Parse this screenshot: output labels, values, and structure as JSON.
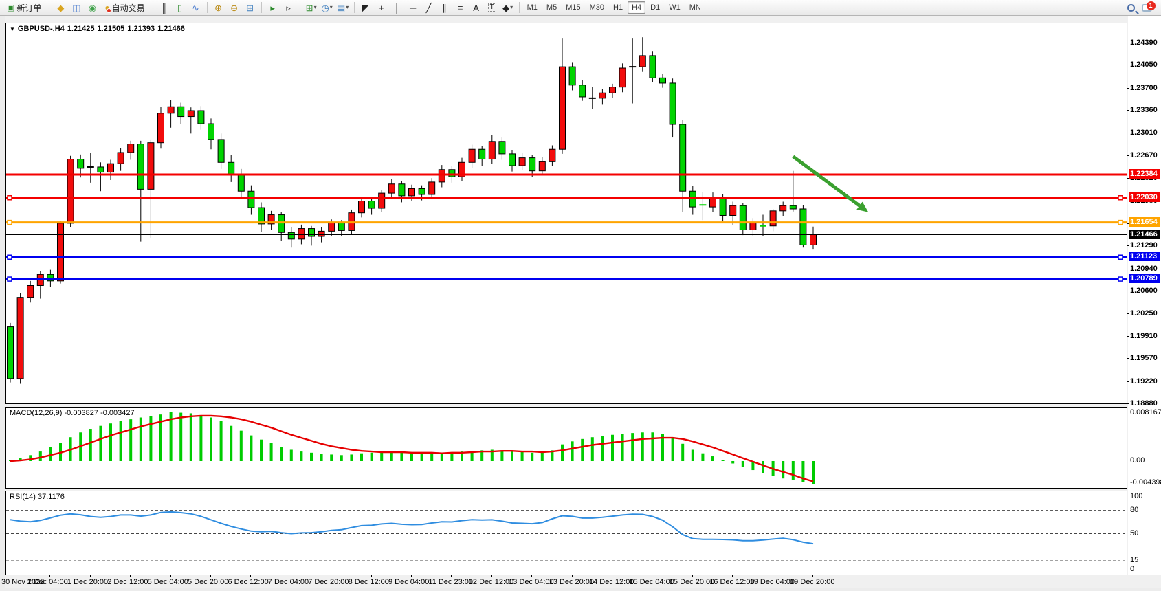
{
  "toolbar": {
    "items": [
      {
        "t": "btn",
        "name": "new-order-button",
        "glyph": "▣",
        "color": "#2e8b2e",
        "label": "新订单"
      },
      {
        "t": "sep"
      },
      {
        "t": "ico",
        "name": "market-watch-icon",
        "glyph": "◆",
        "color": "#d9a520"
      },
      {
        "t": "ico",
        "name": "navigator-icon",
        "glyph": "◫",
        "color": "#4f7fd0"
      },
      {
        "t": "ico",
        "name": "terminal-icon",
        "glyph": "◉",
        "color": "#3fa24a"
      },
      {
        "t": "btn",
        "name": "auto-trading-button",
        "glyph": "●",
        "color": "#d9a520",
        "label": "自动交易",
        "dot": true
      },
      {
        "t": "sep"
      },
      {
        "t": "ico",
        "name": "bar-chart-icon",
        "glyph": "║",
        "color": "#444"
      },
      {
        "t": "ico",
        "name": "candlestick-chart-icon",
        "glyph": "▯",
        "color": "#2e8b2e"
      },
      {
        "t": "ico",
        "name": "line-chart-icon",
        "glyph": "∿",
        "color": "#4f7fd0"
      },
      {
        "t": "sep"
      },
      {
        "t": "ico",
        "name": "zoom-in-icon",
        "glyph": "⊕",
        "color": "#b8860b"
      },
      {
        "t": "ico",
        "name": "zoom-out-icon",
        "glyph": "⊖",
        "color": "#b8860b"
      },
      {
        "t": "ico",
        "name": "tile-windows-icon",
        "glyph": "⊞",
        "color": "#3f7fbf"
      },
      {
        "t": "sep"
      },
      {
        "t": "ico",
        "name": "auto-scroll-icon",
        "glyph": "▸",
        "color": "#2e8b2e"
      },
      {
        "t": "ico",
        "name": "chart-shift-icon",
        "glyph": "▹",
        "color": "#444"
      },
      {
        "t": "sep"
      },
      {
        "t": "drop",
        "name": "new-chart-button",
        "glyph": "⊞",
        "color": "#2e8b2e"
      },
      {
        "t": "drop",
        "name": "periods-button",
        "glyph": "◷",
        "color": "#3f7fbf"
      },
      {
        "t": "drop",
        "name": "templates-button",
        "glyph": "▤",
        "color": "#3f7fbf"
      },
      {
        "t": "sep"
      },
      {
        "t": "ico",
        "name": "cursor-icon",
        "glyph": "◤",
        "color": "#222"
      },
      {
        "t": "ico",
        "name": "crosshair-icon",
        "glyph": "+",
        "color": "#222"
      },
      {
        "t": "ico",
        "name": "vertical-line-icon",
        "glyph": "│",
        "color": "#222"
      },
      {
        "t": "ico",
        "name": "horizontal-line-icon",
        "glyph": "─",
        "color": "#222"
      },
      {
        "t": "ico",
        "name": "trendline-icon",
        "glyph": "╱",
        "color": "#222"
      },
      {
        "t": "ico",
        "name": "equidistant-channel-icon",
        "glyph": "∥",
        "color": "#222"
      },
      {
        "t": "ico",
        "name": "fibonacci-icon",
        "glyph": "≡",
        "color": "#222"
      },
      {
        "t": "ico",
        "name": "text-icon",
        "glyph": "A",
        "color": "#222"
      },
      {
        "t": "ico",
        "name": "text-label-icon",
        "glyph": "T",
        "color": "#222",
        "boxed": true
      },
      {
        "t": "drop",
        "name": "arrows-tool-button",
        "glyph": "◆",
        "color": "#222"
      },
      {
        "t": "sep"
      }
    ],
    "timeframes": [
      "M1",
      "M5",
      "M15",
      "M30",
      "H1",
      "H4",
      "D1",
      "W1",
      "MN"
    ],
    "active_timeframe": "H4",
    "notification_count": "1"
  },
  "chart": {
    "title": {
      "symbol": "GBPUSD-,H4",
      "open": "1.21425",
      "high": "1.21505",
      "low": "1.21393",
      "close": "1.21466"
    },
    "price_axis_ticks": [
      "1.24390",
      "1.24050",
      "1.23700",
      "1.23360",
      "1.23010",
      "1.22670",
      "1.22320",
      "1.21980",
      "1.21630",
      "1.21290",
      "1.20940",
      "1.20600",
      "1.20250",
      "1.19910",
      "1.19570",
      "1.19220",
      "1.18880"
    ],
    "hlines": [
      {
        "price": 1.22384,
        "label": "1.22384",
        "color": "#f40000",
        "width": 3,
        "handle": false
      },
      {
        "price": 1.2203,
        "label": "1.22030",
        "color": "#f40000",
        "width": 3,
        "handle": true
      },
      {
        "price": 1.21654,
        "label": "1.21654",
        "color": "#ffa400",
        "width": 3,
        "handle": true
      },
      {
        "price": 1.21466,
        "label": "1.21466",
        "color": "#000000",
        "width": 1,
        "handle": false,
        "current": true
      },
      {
        "price": 1.21123,
        "label": "1.21123",
        "color": "#0000f0",
        "width": 3,
        "handle": true
      },
      {
        "price": 1.20789,
        "label": "1.20789",
        "color": "#0000f0",
        "width": 3,
        "handle": true
      }
    ],
    "arrow": {
      "color": "#3aa02f",
      "from_bar": 78,
      "from_price": 1.2266,
      "to_bar": 85.5,
      "to_price": 1.2181
    },
    "colors": {
      "bull": "#f20c0c",
      "bear": "#00d400",
      "wick": "#000000"
    },
    "time_labels": [
      "30 Nov 2022",
      "1 Dec 04:00",
      "1 Dec 20:00",
      "2 Dec 12:00",
      "5 Dec 04:00",
      "5 Dec 20:00",
      "6 Dec 12:00",
      "7 Dec 04:00",
      "7 Dec 20:00",
      "8 Dec 12:00",
      "9 Dec 04:00",
      "11 Dec 23:00",
      "12 Dec 12:00",
      "13 Dec 04:00",
      "13 Dec 20:00",
      "14 Dec 12:00",
      "15 Dec 04:00",
      "15 Dec 20:00",
      "16 Dec 12:00",
      "19 Dec 04:00",
      "19 Dec 20:00"
    ],
    "candles": [
      [
        1.2006,
        1.2012,
        1.1921,
        1.1927
      ],
      [
        1.1927,
        1.2058,
        1.1919,
        1.2051
      ],
      [
        1.2051,
        1.2076,
        1.2043,
        1.2069
      ],
      [
        1.2069,
        1.2091,
        1.2049,
        1.2086
      ],
      [
        1.2086,
        1.2093,
        1.2067,
        1.2076
      ],
      [
        1.2076,
        1.2168,
        1.2072,
        1.2164
      ],
      [
        1.2164,
        1.2267,
        1.2158,
        1.2262
      ],
      [
        1.2262,
        1.2269,
        1.2234,
        1.2248
      ],
      [
        1.2249,
        1.2272,
        1.2226,
        1.225,
        "d"
      ],
      [
        1.225,
        1.2257,
        1.2213,
        1.2242
      ],
      [
        1.2242,
        1.2261,
        1.223,
        1.2255
      ],
      [
        1.2255,
        1.2279,
        1.2244,
        1.2272
      ],
      [
        1.2272,
        1.229,
        1.2261,
        1.2285
      ],
      [
        1.2285,
        1.229,
        1.2136,
        1.2216
      ],
      [
        1.2216,
        1.2292,
        1.2142,
        1.2287
      ],
      [
        1.2287,
        1.2342,
        1.2278,
        1.2332
      ],
      [
        1.2332,
        1.2352,
        1.231,
        1.2342
      ],
      [
        1.2342,
        1.2348,
        1.2316,
        1.2327
      ],
      [
        1.2327,
        1.2341,
        1.2301,
        1.2336
      ],
      [
        1.2336,
        1.2343,
        1.2307,
        1.2316
      ],
      [
        1.2316,
        1.2324,
        1.2277,
        1.2292
      ],
      [
        1.2292,
        1.2301,
        1.2247,
        1.2257
      ],
      [
        1.2257,
        1.2268,
        1.2227,
        1.2238
      ],
      [
        1.2238,
        1.2247,
        1.2202,
        1.2213
      ],
      [
        1.2213,
        1.2222,
        1.2177,
        1.2188
      ],
      [
        1.2188,
        1.2196,
        1.2151,
        1.2163
      ],
      [
        1.2163,
        1.2183,
        1.2154,
        1.2177
      ],
      [
        1.2177,
        1.2181,
        1.2137,
        1.215
      ],
      [
        1.215,
        1.2158,
        1.2127,
        1.214
      ],
      [
        1.214,
        1.2162,
        1.2132,
        1.2156
      ],
      [
        1.2156,
        1.216,
        1.213,
        1.2144
      ],
      [
        1.2144,
        1.2158,
        1.2135,
        1.2152
      ],
      [
        1.2152,
        1.217,
        1.2144,
        1.2165
      ],
      [
        1.2165,
        1.2169,
        1.2145,
        1.2153
      ],
      [
        1.2153,
        1.2185,
        1.2148,
        1.218
      ],
      [
        1.218,
        1.2204,
        1.2173,
        1.2198
      ],
      [
        1.2198,
        1.2202,
        1.2177,
        1.2187
      ],
      [
        1.2187,
        1.2215,
        1.2181,
        1.221
      ],
      [
        1.221,
        1.2232,
        1.2202,
        1.2224
      ],
      [
        1.2224,
        1.2229,
        1.2196,
        1.2206
      ],
      [
        1.2206,
        1.2223,
        1.2198,
        1.2217
      ],
      [
        1.2217,
        1.2222,
        1.2199,
        1.2208
      ],
      [
        1.2208,
        1.2233,
        1.2202,
        1.2227
      ],
      [
        1.2227,
        1.2253,
        1.2219,
        1.2246
      ],
      [
        1.2246,
        1.2251,
        1.2226,
        1.2235
      ],
      [
        1.2235,
        1.2264,
        1.2229,
        1.2257
      ],
      [
        1.2257,
        1.2284,
        1.2249,
        1.2277
      ],
      [
        1.2277,
        1.2282,
        1.2252,
        1.2262
      ],
      [
        1.2262,
        1.2299,
        1.2255,
        1.2289
      ],
      [
        1.2289,
        1.2295,
        1.2261,
        1.227
      ],
      [
        1.227,
        1.2276,
        1.2243,
        1.2252
      ],
      [
        1.2252,
        1.2271,
        1.2245,
        1.2264
      ],
      [
        1.2264,
        1.2268,
        1.2235,
        1.2244
      ],
      [
        1.2244,
        1.2265,
        1.2237,
        1.2258
      ],
      [
        1.2258,
        1.2283,
        1.2251,
        1.2277
      ],
      [
        1.2277,
        1.2446,
        1.227,
        1.2403
      ],
      [
        1.2403,
        1.241,
        1.2367,
        1.2375
      ],
      [
        1.2375,
        1.2383,
        1.2351,
        1.2357
      ],
      [
        1.2356,
        1.2372,
        1.2339,
        1.2355,
        "d"
      ],
      [
        1.2355,
        1.2369,
        1.2345,
        1.2363
      ],
      [
        1.2363,
        1.2377,
        1.2355,
        1.2372
      ],
      [
        1.2372,
        1.2408,
        1.2364,
        1.2401
      ],
      [
        1.2401,
        1.2446,
        1.2347,
        1.2403,
        "d"
      ],
      [
        1.2403,
        1.2448,
        1.2395,
        1.242
      ],
      [
        1.242,
        1.2427,
        1.2379,
        1.2386
      ],
      [
        1.2386,
        1.2392,
        1.2371,
        1.2378
      ],
      [
        1.2378,
        1.2385,
        1.2295,
        1.2315
      ],
      [
        1.2315,
        1.2322,
        1.2181,
        1.2213
      ],
      [
        1.2213,
        1.2221,
        1.2177,
        1.2189
      ],
      [
        1.2191,
        1.2212,
        1.2169,
        1.2192,
        "x"
      ],
      [
        1.2189,
        1.2211,
        1.2181,
        1.2202
      ],
      [
        1.2202,
        1.2208,
        1.2167,
        1.2176
      ],
      [
        1.2176,
        1.2197,
        1.2161,
        1.2191
      ],
      [
        1.2191,
        1.2195,
        1.2146,
        1.2154
      ],
      [
        1.2154,
        1.2172,
        1.2145,
        1.2165
      ],
      [
        1.2161,
        1.2177,
        1.2145,
        1.216,
        "x"
      ],
      [
        1.216,
        1.2186,
        1.2152,
        1.2183
      ],
      [
        1.2183,
        1.2197,
        1.2175,
        1.2191
      ],
      [
        1.2191,
        1.2244,
        1.2182,
        1.2186
      ],
      [
        1.2186,
        1.2192,
        1.2127,
        1.2131
      ],
      [
        1.2131,
        1.2159,
        1.2124,
        1.21466
      ]
    ]
  },
  "macd": {
    "label": "MACD(12,26,9)",
    "values_text": "-0.003827 -0.003427",
    "axis": [
      "0.008167",
      "0.00",
      "-0.004398"
    ],
    "bar_color": "#00cc00",
    "signal_color": "#e60000",
    "hist": [
      0.0002,
      0.0005,
      0.001,
      0.0016,
      0.0023,
      0.0031,
      0.004,
      0.0048,
      0.0054,
      0.0059,
      0.0063,
      0.0067,
      0.007,
      0.0073,
      0.0075,
      0.0078,
      0.0082,
      0.0081,
      0.008,
      0.0077,
      0.0073,
      0.0067,
      0.0059,
      0.0051,
      0.0043,
      0.0036,
      0.003,
      0.0024,
      0.0019,
      0.0016,
      0.0014,
      0.0012,
      0.0011,
      0.001,
      0.0011,
      0.0013,
      0.0014,
      0.0015,
      0.0016,
      0.0015,
      0.0014,
      0.0013,
      0.0013,
      0.0014,
      0.0015,
      0.0016,
      0.0017,
      0.0018,
      0.0019,
      0.0018,
      0.0016,
      0.0015,
      0.0014,
      0.0015,
      0.0018,
      0.0028,
      0.0033,
      0.0037,
      0.004,
      0.0042,
      0.0044,
      0.0046,
      0.0047,
      0.0048,
      0.0048,
      0.0046,
      0.004,
      0.0029,
      0.0019,
      0.0013,
      0.0008,
      0.0002,
      -0.0004,
      -0.001,
      -0.0015,
      -0.002,
      -0.0025,
      -0.0029,
      -0.0032,
      -0.0035,
      -0.0038
    ],
    "signal": [
      0.0,
      0.0001,
      0.0003,
      0.0006,
      0.001,
      0.0014,
      0.0019,
      0.0025,
      0.0031,
      0.0037,
      0.0043,
      0.0048,
      0.0053,
      0.0058,
      0.0062,
      0.0066,
      0.007,
      0.0073,
      0.0075,
      0.0076,
      0.0076,
      0.0075,
      0.0073,
      0.007,
      0.0066,
      0.0061,
      0.0056,
      0.005,
      0.0044,
      0.0039,
      0.0034,
      0.0029,
      0.0025,
      0.0022,
      0.0019,
      0.0017,
      0.0016,
      0.0015,
      0.0015,
      0.0015,
      0.0014,
      0.0014,
      0.0014,
      0.0013,
      0.0014,
      0.0014,
      0.0015,
      0.0016,
      0.0016,
      0.0017,
      0.0017,
      0.0016,
      0.0016,
      0.0015,
      0.0016,
      0.0018,
      0.0021,
      0.0024,
      0.0027,
      0.0029,
      0.0031,
      0.0033,
      0.0035,
      0.0037,
      0.0038,
      0.0039,
      0.0039,
      0.0037,
      0.0033,
      0.0028,
      0.0023,
      0.0017,
      0.0011,
      0.0005,
      -0.0001,
      -0.0007,
      -0.0013,
      -0.0018,
      -0.0023,
      -0.0029,
      -0.0034
    ]
  },
  "rsi": {
    "label": "RSI(14)",
    "value_text": "37.1176",
    "axis": [
      "100",
      "80",
      "50",
      "15",
      "0"
    ],
    "levels": [
      80,
      50,
      15
    ],
    "line_color": "#2f8de0",
    "values": [
      68,
      66,
      64,
      67,
      70,
      74,
      77,
      74,
      72,
      70,
      72,
      74,
      76,
      70,
      74,
      78,
      79,
      76,
      77,
      72,
      68,
      63,
      59,
      56,
      53,
      51,
      55,
      51,
      48,
      53,
      50,
      52,
      56,
      53,
      58,
      62,
      59,
      63,
      65,
      60,
      63,
      60,
      64,
      67,
      63,
      67,
      70,
      65,
      70,
      66,
      62,
      65,
      61,
      64,
      68,
      76,
      72,
      69,
      70,
      71,
      72,
      75,
      74,
      77,
      71,
      69,
      60,
      46,
      43,
      42,
      44,
      41,
      44,
      39,
      42,
      41,
      43,
      45,
      43,
      38,
      37.1
    ]
  }
}
